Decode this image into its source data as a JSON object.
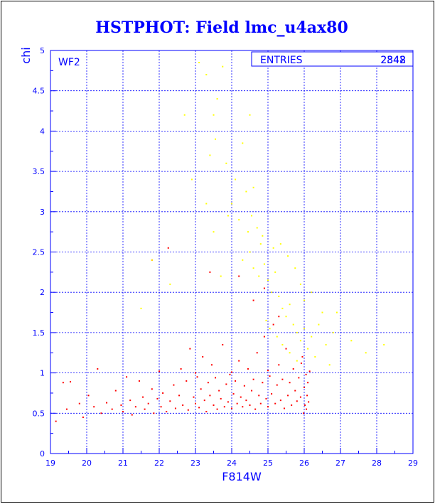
{
  "colors": {
    "title": "#0000ff",
    "axis": "#0000ff",
    "grid": "#0000ff",
    "series_red": "#ff0000",
    "series_yellow": "#ffff00",
    "frame": "#000000"
  },
  "chart_data": {
    "type": "scatter",
    "title": "HSTPHOT: Field lmc_u4ax80",
    "xlabel": "F814W",
    "ylabel": "chi",
    "xlim": [
      19,
      29
    ],
    "ylim": [
      0,
      5
    ],
    "grid": true,
    "xticks": [
      "19",
      "20",
      "21",
      "22",
      "23",
      "24",
      "25",
      "26",
      "27",
      "28",
      "29"
    ],
    "yticks": [
      "0",
      "0.5",
      "1",
      "1.5",
      "2",
      "2.5",
      "3",
      "3.5",
      "4",
      "4.5",
      "5"
    ],
    "panel_label": "WF2",
    "stats": {
      "label": "ENTRIES",
      "value_overlaps": [
        "2348",
        "2842"
      ]
    },
    "series": [
      {
        "color": "red",
        "points": [
          [
            19.15,
            0.4
          ],
          [
            19.35,
            0.88
          ],
          [
            19.45,
            0.55
          ],
          [
            19.55,
            0.89
          ],
          [
            19.8,
            0.62
          ],
          [
            19.9,
            0.45
          ],
          [
            20.05,
            0.72
          ],
          [
            20.2,
            0.58
          ],
          [
            20.3,
            1.05
          ],
          [
            20.4,
            0.5
          ],
          [
            20.55,
            0.63
          ],
          [
            20.7,
            0.55
          ],
          [
            20.8,
            0.78
          ],
          [
            20.95,
            0.6
          ],
          [
            21.0,
            0.52
          ],
          [
            21.1,
            0.95
          ],
          [
            21.2,
            0.66
          ],
          [
            21.25,
            0.48
          ],
          [
            21.35,
            0.58
          ],
          [
            21.45,
            0.9
          ],
          [
            21.55,
            0.7
          ],
          [
            21.6,
            0.55
          ],
          [
            21.7,
            0.62
          ],
          [
            21.8,
            0.8
          ],
          [
            21.85,
            0.5
          ],
          [
            21.95,
            0.68
          ],
          [
            22.05,
            0.58
          ],
          [
            22.1,
            0.75
          ],
          [
            22.2,
            0.52
          ],
          [
            22.25,
            2.55
          ],
          [
            22.3,
            0.65
          ],
          [
            22.4,
            0.85
          ],
          [
            22.45,
            0.56
          ],
          [
            22.55,
            0.72
          ],
          [
            22.6,
            1.05
          ],
          [
            22.65,
            0.6
          ],
          [
            22.75,
            0.9
          ],
          [
            22.8,
            0.54
          ],
          [
            22.85,
            1.3
          ],
          [
            22.95,
            0.7
          ],
          [
            23.0,
            0.62
          ],
          [
            23.05,
            0.95
          ],
          [
            23.1,
            0.57
          ],
          [
            23.15,
            0.8
          ],
          [
            23.2,
            1.2
          ],
          [
            23.25,
            0.66
          ],
          [
            23.3,
            0.52
          ],
          [
            23.35,
            0.88
          ],
          [
            23.4,
            0.72
          ],
          [
            23.45,
            1.1
          ],
          [
            23.5,
            0.6
          ],
          [
            23.55,
            0.94
          ],
          [
            23.6,
            0.55
          ],
          [
            23.65,
            0.78
          ],
          [
            23.7,
            0.68
          ],
          [
            23.75,
            1.35
          ],
          [
            23.8,
            0.58
          ],
          [
            23.85,
            0.86
          ],
          [
            23.9,
            0.64
          ],
          [
            23.95,
            0.98
          ],
          [
            24.0,
            0.56
          ],
          [
            24.05,
            0.74
          ],
          [
            24.1,
            0.9
          ],
          [
            24.15,
            0.62
          ],
          [
            24.2,
            1.15
          ],
          [
            24.25,
            0.7
          ],
          [
            24.3,
            0.58
          ],
          [
            24.35,
            0.84
          ],
          [
            24.4,
            0.66
          ],
          [
            24.45,
            1.05
          ],
          [
            24.5,
            0.6
          ],
          [
            24.55,
            0.78
          ],
          [
            24.6,
            0.92
          ],
          [
            24.65,
            0.55
          ],
          [
            24.7,
            1.25
          ],
          [
            24.75,
            0.72
          ],
          [
            24.8,
            0.62
          ],
          [
            24.85,
            0.88
          ],
          [
            24.9,
            1.45
          ],
          [
            24.95,
            0.68
          ],
          [
            25.0,
            0.58
          ],
          [
            25.05,
            0.96
          ],
          [
            25.1,
            0.74
          ],
          [
            25.15,
            1.6
          ],
          [
            25.2,
            0.62
          ],
          [
            25.25,
            0.85
          ],
          [
            25.3,
            1.1
          ],
          [
            25.35,
            0.66
          ],
          [
            25.4,
            0.92
          ],
          [
            25.45,
            0.56
          ],
          [
            25.5,
            1.3
          ],
          [
            25.55,
            0.72
          ],
          [
            25.6,
            0.88
          ],
          [
            25.65,
            0.6
          ],
          [
            25.7,
            1.05
          ],
          [
            25.75,
            0.78
          ],
          [
            25.8,
            0.65
          ],
          [
            25.85,
            0.94
          ],
          [
            25.9,
            0.7
          ],
          [
            25.95,
            1.2
          ],
          [
            26.0,
            0.82
          ],
          [
            26.02,
            0.6
          ],
          [
            26.05,
            0.98
          ],
          [
            26.08,
            0.72
          ],
          [
            26.1,
            0.88
          ],
          [
            26.12,
            0.64
          ],
          [
            26.15,
            1.02
          ],
          [
            25.98,
            0.5
          ],
          [
            25.92,
            1.12
          ],
          [
            26.06,
            0.55
          ],
          [
            23.4,
            2.25
          ],
          [
            24.2,
            2.2
          ],
          [
            24.6,
            1.9
          ],
          [
            24.9,
            2.05
          ],
          [
            25.3,
            1.7
          ],
          [
            21.8,
            2.4
          ],
          [
            23.0,
            1.0
          ],
          [
            22.0,
            1.02
          ],
          [
            24.0,
            1.01
          ],
          [
            25.0,
            1.03
          ]
        ]
      },
      {
        "color": "yellow",
        "points": [
          [
            23.1,
            4.85
          ],
          [
            23.3,
            4.7
          ],
          [
            23.6,
            4.4
          ],
          [
            23.75,
            4.8
          ],
          [
            23.5,
            4.2
          ],
          [
            23.55,
            3.9
          ],
          [
            23.4,
            3.7
          ],
          [
            23.85,
            3.6
          ],
          [
            24.3,
            3.85
          ],
          [
            24.5,
            4.2
          ],
          [
            24.1,
            3.4
          ],
          [
            24.4,
            3.25
          ],
          [
            24.6,
            3.3
          ],
          [
            24.0,
            3.1
          ],
          [
            23.9,
            2.95
          ],
          [
            24.2,
            2.9
          ],
          [
            24.45,
            2.75
          ],
          [
            24.7,
            2.8
          ],
          [
            24.8,
            2.6
          ],
          [
            24.5,
            2.5
          ],
          [
            24.3,
            2.4
          ],
          [
            24.6,
            2.3
          ],
          [
            24.75,
            2.2
          ],
          [
            24.9,
            2.35
          ],
          [
            25.0,
            2.15
          ],
          [
            25.1,
            2.0
          ],
          [
            25.2,
            2.25
          ],
          [
            25.3,
            1.95
          ],
          [
            25.4,
            1.8
          ],
          [
            25.5,
            1.7
          ],
          [
            25.6,
            1.85
          ],
          [
            25.7,
            1.6
          ],
          [
            25.8,
            1.5
          ],
          [
            25.9,
            1.4
          ],
          [
            26.0,
            1.55
          ],
          [
            26.1,
            1.3
          ],
          [
            26.2,
            1.45
          ],
          [
            26.3,
            1.2
          ],
          [
            26.4,
            1.6
          ],
          [
            26.5,
            1.75
          ],
          [
            26.6,
            1.35
          ],
          [
            26.2,
            2.0
          ],
          [
            26.0,
            1.9
          ],
          [
            25.9,
            2.1
          ],
          [
            25.75,
            2.3
          ],
          [
            25.55,
            2.45
          ],
          [
            25.35,
            2.6
          ],
          [
            25.15,
            2.55
          ],
          [
            24.85,
            2.7
          ],
          [
            24.55,
            2.95
          ],
          [
            23.7,
            2.2
          ],
          [
            23.5,
            2.75
          ],
          [
            23.3,
            3.1
          ],
          [
            22.9,
            3.4
          ],
          [
            22.7,
            4.2
          ],
          [
            22.3,
            2.1
          ],
          [
            21.8,
            2.4
          ],
          [
            21.5,
            1.8
          ],
          [
            26.8,
            1.5
          ],
          [
            27.3,
            1.4
          ],
          [
            27.7,
            1.25
          ],
          [
            28.2,
            1.35
          ],
          [
            26.7,
            1.1
          ],
          [
            26.9,
            1.75
          ],
          [
            25.8,
            1.15
          ],
          [
            25.6,
            1.25
          ],
          [
            25.4,
            1.35
          ],
          [
            25.25,
            1.45
          ],
          [
            25.05,
            1.55
          ],
          [
            24.95,
            1.65
          ]
        ]
      }
    ]
  }
}
